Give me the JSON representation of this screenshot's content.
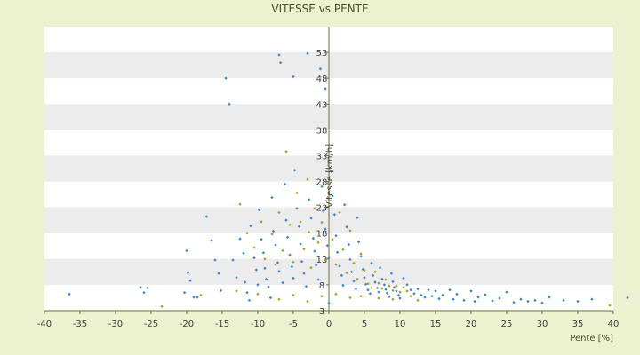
{
  "chart_data": {
    "type": "scatter",
    "title": "VITESSE vs PENTE",
    "xlabel": "Pente [%]",
    "ylabel": "Vitesse [km/h]",
    "xlim": [
      -40,
      40
    ],
    "ylim": [
      3,
      58
    ],
    "x_ticks": [
      -40,
      -35,
      -30,
      -25,
      -20,
      -15,
      -10,
      -5,
      0,
      5,
      10,
      15,
      20,
      25,
      30,
      35,
      40
    ],
    "y_ticks": [
      3,
      8,
      13,
      18,
      23,
      28,
      33,
      38,
      43,
      48,
      53
    ],
    "grid": "horizontal alternating bands",
    "colors": {
      "background": "#ecf1cf",
      "plot_band_light": "#ffffff",
      "plot_band_dark": "#ececec",
      "series_a": "#3b87cf",
      "series_b": "#a6a02a",
      "axis": "#6b6b3a"
    },
    "series": [
      {
        "color": "#3b87cf",
        "points": [
          [
            -36.5,
            6.2
          ],
          [
            -26.5,
            7.5
          ],
          [
            -26,
            6.5
          ],
          [
            -25.5,
            7.4
          ],
          [
            -20.3,
            6.5
          ],
          [
            -20.0,
            14.6
          ],
          [
            -19.8,
            10.3
          ],
          [
            -19.5,
            8.8
          ],
          [
            -19,
            5.6
          ],
          [
            -18.5,
            5.6
          ],
          [
            -17.2,
            21.2
          ],
          [
            -16.5,
            16.6
          ],
          [
            -16,
            12.8
          ],
          [
            -15.5,
            10.2
          ],
          [
            -15.2,
            6.9
          ],
          [
            -14.5,
            48.0
          ],
          [
            -14.0,
            43.0
          ],
          [
            -13.5,
            12.8
          ],
          [
            -13.0,
            9.4
          ],
          [
            -12.5,
            16.9
          ],
          [
            -12.0,
            14.1
          ],
          [
            -11.8,
            8.5
          ],
          [
            -11.5,
            6.5
          ],
          [
            -11.2,
            5.0
          ],
          [
            -11.0,
            19.4
          ],
          [
            -10.5,
            13.2
          ],
          [
            -10.2,
            10.9
          ],
          [
            -10.0,
            8.0
          ],
          [
            -9.8,
            22.5
          ],
          [
            -9.5,
            16.8
          ],
          [
            -9.2,
            14.2
          ],
          [
            -9.0,
            11.2
          ],
          [
            -8.8,
            9.1
          ],
          [
            -8.5,
            7.6
          ],
          [
            -8.2,
            5.5
          ],
          [
            -8.0,
            24.9
          ],
          [
            -7.8,
            18.4
          ],
          [
            -7.5,
            15.7
          ],
          [
            -7.2,
            12.3
          ],
          [
            -7.0,
            10.6
          ],
          [
            -7.0,
            52.5
          ],
          [
            -6.8,
            51.0
          ],
          [
            -6.5,
            8.4
          ],
          [
            -6.2,
            27.5
          ],
          [
            -6.0,
            20.5
          ],
          [
            -5.8,
            17.2
          ],
          [
            -5.5,
            13.8
          ],
          [
            -5.2,
            11.5
          ],
          [
            -5.0,
            9.3
          ],
          [
            -5.0,
            48.3
          ],
          [
            -4.8,
            30.2
          ],
          [
            -4.5,
            22.8
          ],
          [
            -4.2,
            19.3
          ],
          [
            -4.0,
            15.9
          ],
          [
            -3.8,
            12.5
          ],
          [
            -3.5,
            10.2
          ],
          [
            -3.2,
            7.7
          ],
          [
            -3.0,
            52.8
          ],
          [
            -2.8,
            24.5
          ],
          [
            -2.5,
            20.9
          ],
          [
            -2.2,
            17.0
          ],
          [
            -2.0,
            14.5
          ],
          [
            -1.8,
            11.8
          ],
          [
            -1.5,
            9.0
          ],
          [
            -1.2,
            49.8
          ],
          [
            -1.0,
            27.0
          ],
          [
            -0.8,
            22.3
          ],
          [
            -0.5,
            18.8
          ],
          [
            -0.5,
            46.0
          ],
          [
            -0.2,
            15.6
          ],
          [
            0.0,
            13.2
          ],
          [
            0.0,
            4.5
          ],
          [
            0.3,
            30.0
          ],
          [
            0.5,
            25.2
          ],
          [
            0.8,
            21.6
          ],
          [
            1.0,
            17.5
          ],
          [
            1.2,
            14.3
          ],
          [
            1.5,
            11.6
          ],
          [
            1.8,
            9.8
          ],
          [
            2.0,
            7.9
          ],
          [
            2.2,
            23.5
          ],
          [
            2.5,
            19.2
          ],
          [
            2.8,
            15.8
          ],
          [
            3.0,
            12.9
          ],
          [
            3.2,
            10.5
          ],
          [
            3.5,
            8.7
          ],
          [
            3.8,
            7.2
          ],
          [
            4.0,
            21.0
          ],
          [
            4.2,
            16.3
          ],
          [
            4.5,
            13.5
          ],
          [
            4.8,
            11.0
          ],
          [
            5.0,
            9.4
          ],
          [
            5.2,
            8.1
          ],
          [
            5.5,
            7.0
          ],
          [
            5.8,
            6.3
          ],
          [
            6.0,
            12.2
          ],
          [
            6.2,
            9.8
          ],
          [
            6.5,
            8.5
          ],
          [
            6.8,
            7.4
          ],
          [
            7.0,
            6.6
          ],
          [
            7.2,
            11.3
          ],
          [
            7.5,
            9.1
          ],
          [
            7.8,
            8.0
          ],
          [
            8.0,
            7.1
          ],
          [
            8.2,
            6.4
          ],
          [
            8.5,
            5.7
          ],
          [
            8.8,
            10.2
          ],
          [
            9.0,
            8.6
          ],
          [
            9.2,
            7.5
          ],
          [
            9.5,
            6.8
          ],
          [
            9.8,
            6.0
          ],
          [
            10.0,
            5.4
          ],
          [
            10.5,
            9.3
          ],
          [
            11.0,
            8.0
          ],
          [
            11.5,
            7.0
          ],
          [
            12.0,
            6.3
          ],
          [
            12.5,
            7.2
          ],
          [
            13.0,
            6.0
          ],
          [
            13.5,
            5.6
          ],
          [
            14.0,
            7.0
          ],
          [
            14.5,
            5.8
          ],
          [
            15.0,
            6.8
          ],
          [
            15.5,
            5.3
          ],
          [
            16.0,
            6.0
          ],
          [
            17.0,
            7.0
          ],
          [
            17.5,
            5.2
          ],
          [
            18.0,
            6.2
          ],
          [
            19.0,
            5.0
          ],
          [
            20.0,
            6.8
          ],
          [
            20.5,
            4.8
          ],
          [
            21.0,
            5.6
          ],
          [
            22.0,
            6.1
          ],
          [
            23.0,
            4.9
          ],
          [
            24.0,
            5.4
          ],
          [
            25.0,
            6.6
          ],
          [
            26.0,
            4.6
          ],
          [
            27.0,
            5.2
          ],
          [
            28.0,
            4.8
          ],
          [
            29.0,
            5.0
          ],
          [
            30.0,
            4.5
          ],
          [
            31.0,
            5.6
          ],
          [
            33.0,
            5.0
          ],
          [
            35.0,
            4.8
          ],
          [
            37.0,
            5.2
          ],
          [
            42.0,
            5.5
          ]
        ]
      },
      {
        "color": "#a6a02a",
        "points": [
          [
            -23.5,
            3.8
          ],
          [
            -12.5,
            23.6
          ],
          [
            -11.5,
            18.0
          ],
          [
            -10.5,
            15.2
          ],
          [
            -9.5,
            20.2
          ],
          [
            -9.0,
            13.0
          ],
          [
            -8.0,
            17.8
          ],
          [
            -7.5,
            11.9
          ],
          [
            -7.0,
            22.0
          ],
          [
            -6.5,
            14.6
          ],
          [
            -6.0,
            33.8
          ],
          [
            -5.5,
            19.6
          ],
          [
            -5.0,
            12.4
          ],
          [
            -4.5,
            25.8
          ],
          [
            -4.0,
            20.2
          ],
          [
            -3.5,
            14.9
          ],
          [
            -3.0,
            28.4
          ],
          [
            -2.8,
            18.2
          ],
          [
            -2.5,
            11.3
          ],
          [
            -2.0,
            22.8
          ],
          [
            -1.5,
            16.2
          ],
          [
            -1.0,
            20.1
          ],
          [
            -0.5,
            12.8
          ],
          [
            0.5,
            16.8
          ],
          [
            1.0,
            11.9
          ],
          [
            1.5,
            22.0
          ],
          [
            2.0,
            14.8
          ],
          [
            2.5,
            10.3
          ],
          [
            3.0,
            18.5
          ],
          [
            3.5,
            12.2
          ],
          [
            4.0,
            9.1
          ],
          [
            4.5,
            14.0
          ],
          [
            5.0,
            10.8
          ],
          [
            5.5,
            8.2
          ],
          [
            6.0,
            7.4
          ],
          [
            6.5,
            10.5
          ],
          [
            7.0,
            8.3
          ],
          [
            7.5,
            7.3
          ],
          [
            8.0,
            9.0
          ],
          [
            8.5,
            7.8
          ],
          [
            9.0,
            6.9
          ],
          [
            9.5,
            7.8
          ],
          [
            10.0,
            6.6
          ],
          [
            10.5,
            7.5
          ],
          [
            11.0,
            6.8
          ],
          [
            -18.0,
            6.0
          ],
          [
            -13.0,
            6.8
          ],
          [
            -10.0,
            6.2
          ],
          [
            -7.0,
            5.2
          ],
          [
            -5.0,
            6.0
          ],
          [
            -3.0,
            4.8
          ],
          [
            -1.0,
            5.8
          ],
          [
            1.0,
            6.2
          ],
          [
            3.0,
            5.5
          ],
          [
            4.5,
            5.8
          ],
          [
            7.0,
            5.4
          ],
          [
            9.0,
            5.2
          ],
          [
            11.5,
            5.8
          ],
          [
            12.5,
            5.0
          ],
          [
            39.5,
            4.0
          ]
        ]
      }
    ]
  }
}
